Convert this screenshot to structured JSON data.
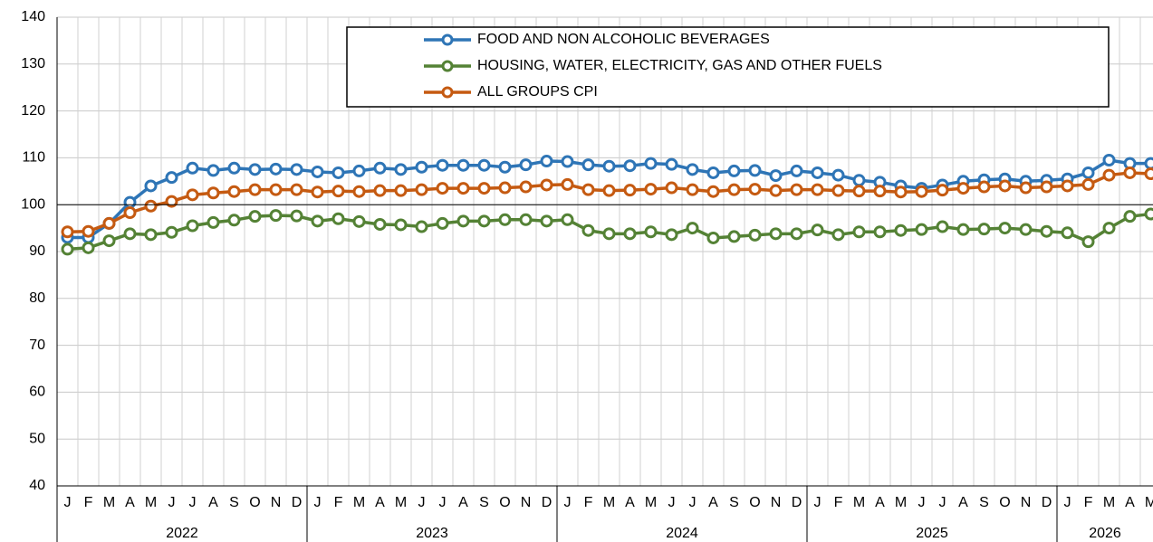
{
  "chart_data": {
    "type": "line",
    "categories": [
      "J",
      "F",
      "M",
      "A",
      "M",
      "J",
      "J",
      "A",
      "S",
      "O",
      "N",
      "D",
      "J",
      "F",
      "M",
      "A",
      "M",
      "J",
      "J",
      "A",
      "S",
      "O",
      "N",
      "D",
      "J",
      "F",
      "M",
      "A",
      "M",
      "J",
      "J",
      "A",
      "S",
      "O",
      "N",
      "D",
      "J",
      "F",
      "M",
      "A",
      "M",
      "J",
      "J",
      "A",
      "S",
      "O",
      "N",
      "D",
      "J",
      "F",
      "M",
      "A",
      "M"
    ],
    "years": [
      "2022",
      "2023",
      "2024",
      "2025",
      "2026"
    ],
    "ylim": [
      40,
      140
    ],
    "yticks": [
      40,
      50,
      60,
      70,
      80,
      90,
      100,
      110,
      120,
      130,
      140
    ],
    "reference_line": 100,
    "grid": true,
    "series": [
      {
        "name": "FOOD AND NON ALCOHOLIC BEVERAGES",
        "color": "#2e75b6",
        "values": [
          93,
          93,
          96,
          100.5,
          104,
          105.8,
          107.8,
          107.3,
          107.8,
          107.5,
          107.6,
          107.5,
          107,
          106.8,
          107.2,
          107.8,
          107.5,
          108,
          108.4,
          108.4,
          108.4,
          108,
          108.5,
          109.3,
          109.2,
          108.5,
          108.2,
          108.3,
          108.8,
          108.6,
          107.5,
          106.8,
          107.2,
          107.3,
          106.2,
          107.2,
          106.8,
          106.3,
          105.2,
          104.8,
          104,
          103.5,
          104.2,
          105,
          105.3,
          105.5,
          105,
          105.2,
          105.5,
          106.8,
          109.5,
          108.8,
          108.8
        ]
      },
      {
        "name": "HOUSING, WATER, ELECTRICITY, GAS AND OTHER FUELS",
        "color": "#548235",
        "values": [
          90.5,
          90.8,
          92.3,
          93.8,
          93.6,
          94.1,
          95.5,
          96.2,
          96.7,
          97.5,
          97.7,
          97.6,
          96.5,
          97,
          96.4,
          95.8,
          95.7,
          95.3,
          96,
          96.5,
          96.5,
          96.8,
          96.8,
          96.5,
          96.8,
          94.5,
          93.8,
          93.8,
          94.2,
          93.6,
          95,
          92.9,
          93.2,
          93.5,
          93.8,
          93.8,
          94.6,
          93.6,
          94.2,
          94.2,
          94.5,
          94.7,
          95.3,
          94.7,
          94.8,
          95,
          94.7,
          94.3,
          94,
          92.1,
          95,
          97.5,
          98
        ]
      },
      {
        "name": "ALL GROUPS CPI",
        "color": "#c55a11",
        "values": [
          94.2,
          94.3,
          96,
          98.3,
          99.7,
          100.7,
          102.1,
          102.5,
          102.8,
          103.2,
          103.2,
          103.2,
          102.7,
          102.9,
          102.8,
          103,
          103,
          103.2,
          103.5,
          103.5,
          103.5,
          103.6,
          103.8,
          104.2,
          104.3,
          103.2,
          103,
          103.1,
          103.3,
          103.6,
          103.2,
          102.8,
          103.2,
          103.3,
          103,
          103.2,
          103.2,
          103,
          102.9,
          102.9,
          102.7,
          102.8,
          103.1,
          103.5,
          103.8,
          104,
          103.6,
          103.8,
          104,
          104.3,
          106.3,
          106.8,
          106.6
        ]
      }
    ]
  }
}
